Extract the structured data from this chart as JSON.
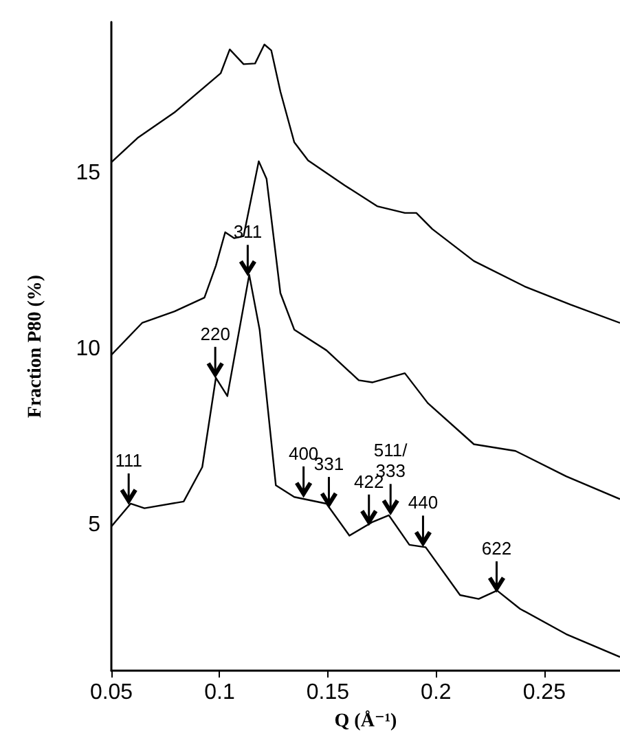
{
  "chart_data": {
    "type": "line",
    "xlabel": "Q (Å⁻¹)",
    "ylabel": "Fraction P80 (%)",
    "xlim": [
      0.05,
      0.285
    ],
    "ylim": [
      0.85,
      19.3
    ],
    "xticks": [
      0.05,
      0.1,
      0.15,
      0.2,
      0.25
    ],
    "yticks": [
      5,
      10,
      15
    ],
    "grid": false,
    "marker": "none",
    "line_style": "solid",
    "series": [
      {
        "color": "#000000",
        "x": [
          0.05,
          0.0621,
          0.0792,
          0.1005,
          0.1047,
          0.1111,
          0.1164,
          0.1207,
          0.1239,
          0.1281,
          0.1345,
          0.1409,
          0.1579,
          0.1728,
          0.1856,
          0.1909,
          0.1983,
          0.2175,
          0.2409,
          0.2622,
          0.285
        ],
        "values": [
          15.31,
          16.0,
          16.73,
          17.84,
          18.52,
          18.1,
          18.12,
          18.66,
          18.49,
          17.32,
          15.88,
          15.36,
          14.65,
          14.06,
          13.87,
          13.87,
          13.41,
          12.5,
          11.78,
          11.26,
          10.74
        ]
      },
      {
        "color": "#000000",
        "x": [
          0.05,
          0.0642,
          0.0792,
          0.093,
          0.0983,
          0.1026,
          0.1068,
          0.1111,
          0.1181,
          0.1217,
          0.1281,
          0.1345,
          0.1494,
          0.1643,
          0.1707,
          0.1856,
          0.1962,
          0.2175,
          0.2367,
          0.2601,
          0.285
        ],
        "values": [
          9.83,
          10.74,
          11.07,
          11.46,
          12.37,
          13.32,
          13.15,
          13.21,
          15.34,
          14.84,
          11.59,
          10.55,
          9.96,
          9.11,
          9.05,
          9.31,
          8.46,
          7.29,
          7.1,
          6.38,
          5.73
        ]
      },
      {
        "color": "#000000",
        "x": [
          0.05,
          0.0589,
          0.0653,
          0.0834,
          0.092,
          0.0983,
          0.1036,
          0.1137,
          0.1185,
          0.126,
          0.1345,
          0.1494,
          0.16,
          0.1707,
          0.1782,
          0.1877,
          0.1952,
          0.2111,
          0.2197,
          0.2282,
          0.2388,
          0.2601,
          0.285
        ],
        "values": [
          4.95,
          5.6,
          5.47,
          5.66,
          6.64,
          9.18,
          8.66,
          12.11,
          10.55,
          6.12,
          5.79,
          5.6,
          4.69,
          5.08,
          5.27,
          4.43,
          4.36,
          3.0,
          2.89,
          3.13,
          2.61,
          1.89,
          1.24
        ]
      }
    ],
    "annotations": [
      {
        "text": "111",
        "x": 0.058,
        "y": 5.6
      },
      {
        "text": "220",
        "x": 0.098,
        "y": 9.2
      },
      {
        "text": "311",
        "x": 0.113,
        "y": 12.1
      },
      {
        "text": "400",
        "x": 0.1388,
        "y": 5.8
      },
      {
        "text": "331",
        "x": 0.1505,
        "y": 5.5
      },
      {
        "text": "422",
        "x": 0.169,
        "y": 5.0
      },
      {
        "text": "511/333",
        "x": 0.179,
        "y": 5.3
      },
      {
        "text": "440",
        "x": 0.194,
        "y": 4.4
      },
      {
        "text": "622",
        "x": 0.228,
        "y": 3.1
      }
    ]
  }
}
